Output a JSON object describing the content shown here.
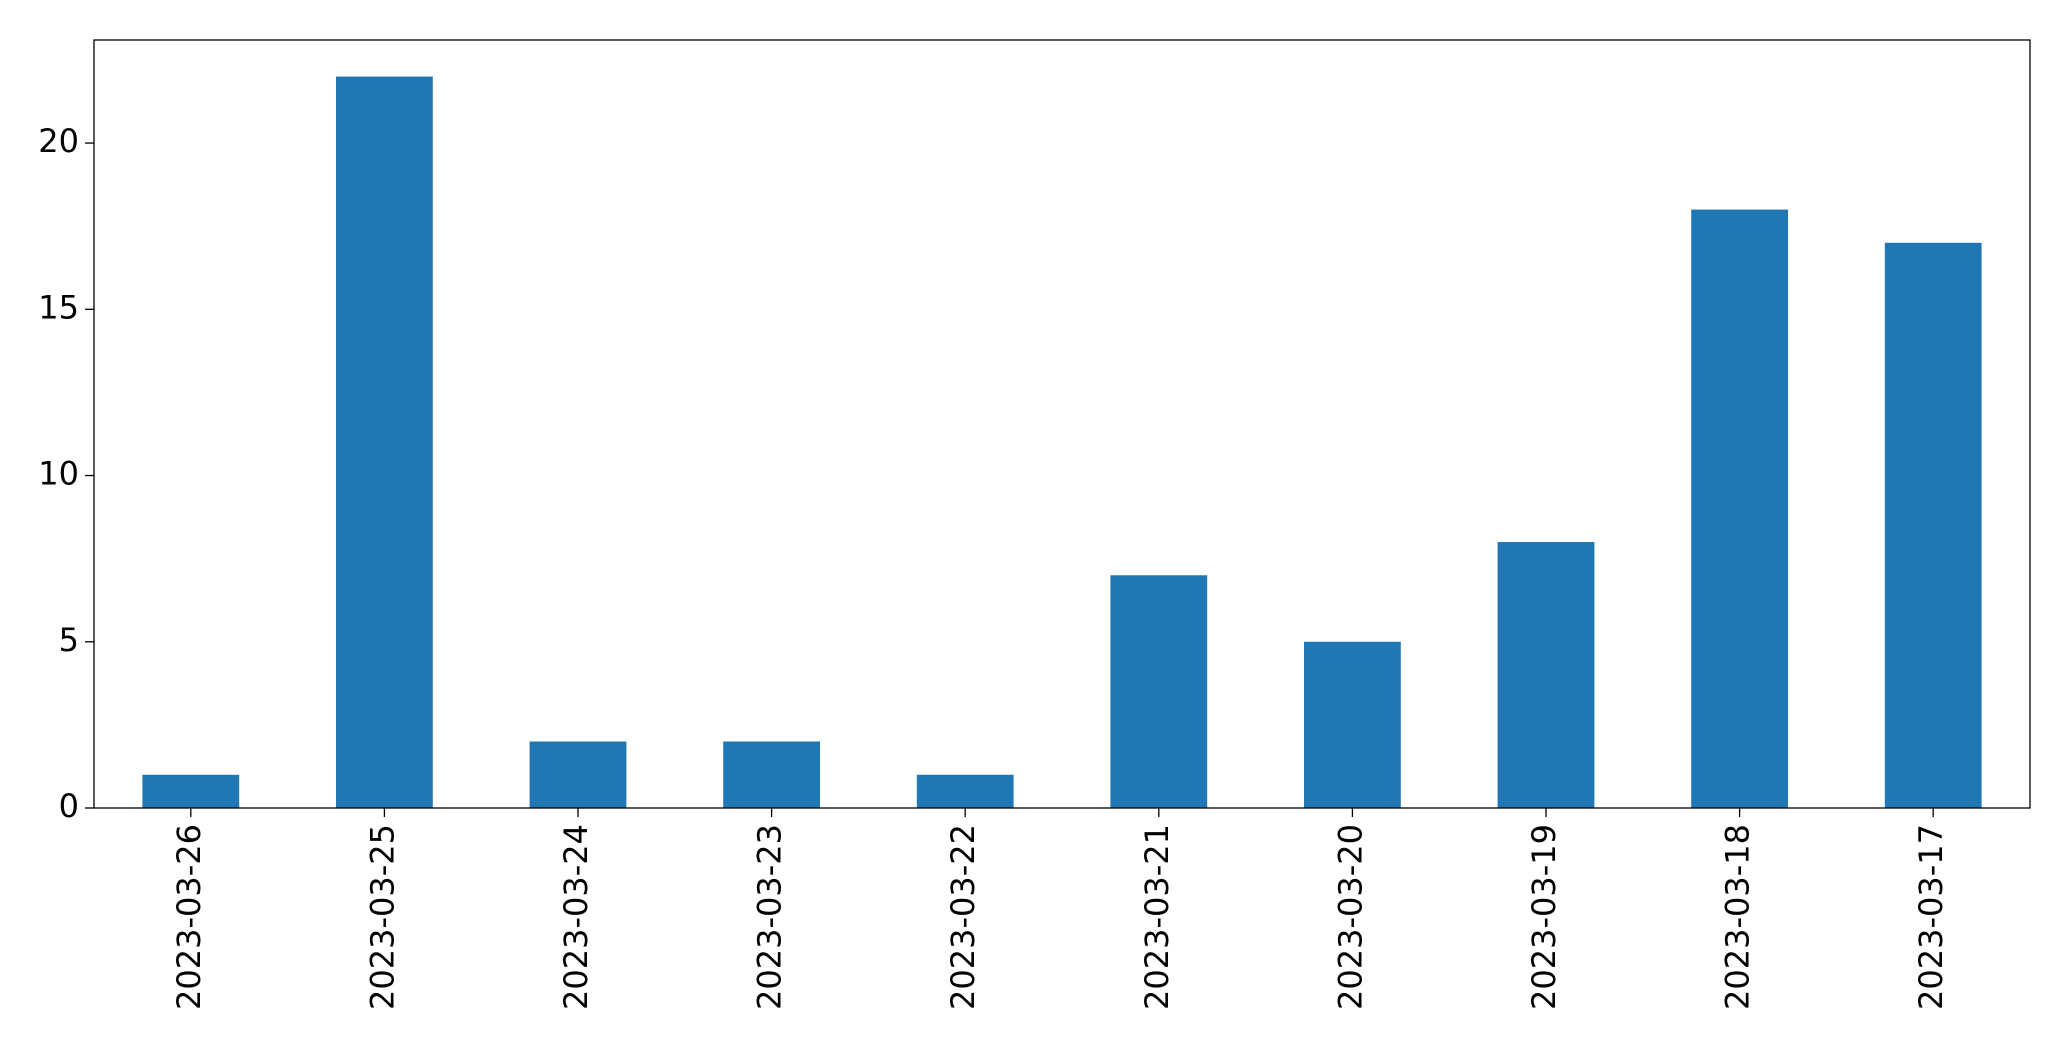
{
  "chart_data": {
    "type": "bar",
    "categories": [
      "2023-03-26",
      "2023-03-25",
      "2023-03-24",
      "2023-03-23",
      "2023-03-22",
      "2023-03-21",
      "2023-03-20",
      "2023-03-19",
      "2023-03-18",
      "2023-03-17"
    ],
    "values": [
      1,
      22,
      2,
      2,
      1,
      7,
      5,
      8,
      18,
      17
    ],
    "color": "#1f77b4",
    "ylim": [
      0,
      23.1
    ],
    "yticks": [
      0,
      5,
      10,
      15,
      20
    ],
    "grid": false
  }
}
